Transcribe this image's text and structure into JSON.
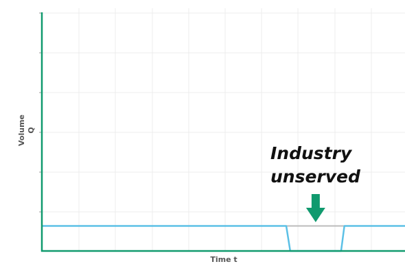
{
  "chart_data": {
    "type": "line",
    "title": "",
    "xlabel": "Time t",
    "ylabel_line1": "Volume",
    "ylabel_line2": "Q",
    "xlim": [
      0,
      100
    ],
    "ylim": [
      0,
      100
    ],
    "grid": true,
    "series": [
      {
        "name": "",
        "color": "#5bc0e6",
        "points": [
          [
            0,
            10.5
          ],
          [
            67.3,
            10.5
          ],
          [
            68.4,
            0
          ],
          [
            82.4,
            0
          ],
          [
            83.3,
            10.5
          ],
          [
            100,
            10.5
          ]
        ]
      }
    ],
    "reference_line": {
      "color": "#bbbbbb",
      "x_start": 67.3,
      "x_end": 83.3,
      "y": 10.5
    },
    "annotation": {
      "line1": "Industry",
      "line2": "unserved",
      "arrow_x": 75.4,
      "arrow_color": "#109a6e"
    },
    "axis_color": "#109a6e"
  }
}
